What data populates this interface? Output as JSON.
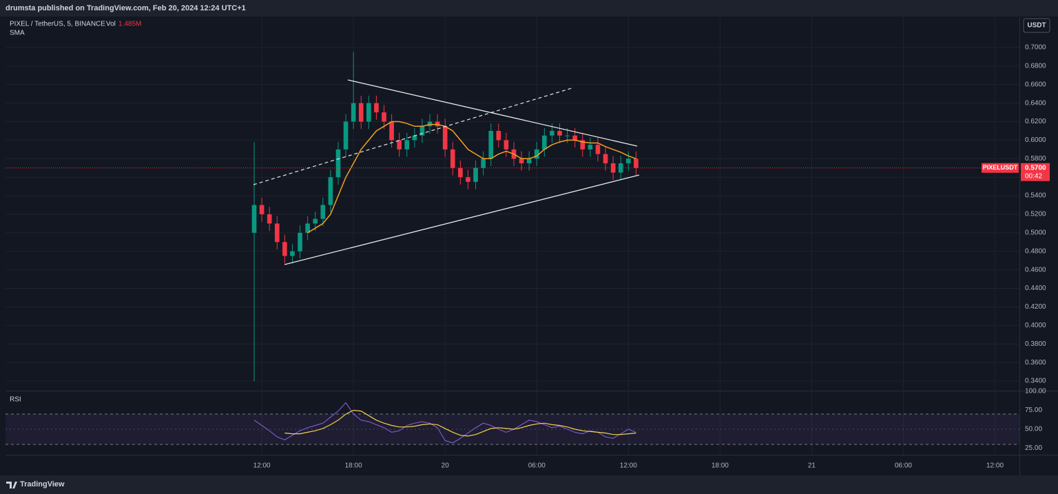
{
  "header": {
    "published": "drumsta published on TradingView.com, Feb 20, 2024 12:24 UTC+1",
    "brand": "TradingView"
  },
  "chart_data": [
    {
      "type": "candlestick",
      "title": "PIXEL / TetherUS, 5, BINANCE",
      "volume_label": "Vol",
      "volume": "1.485M",
      "indicator": "SMA",
      "currency": "USDT",
      "x": [
        11.5,
        12,
        12.5,
        13,
        13.5,
        14,
        14.5,
        15,
        15.5,
        16,
        16.5,
        17,
        17.5,
        18,
        18.5,
        19,
        19.5,
        20,
        20.5,
        21,
        21.5,
        22,
        22.5,
        23,
        23.5,
        24,
        24.5,
        25,
        25.5,
        26,
        26.5,
        27,
        27.5,
        28,
        28.5,
        29,
        29.5,
        30,
        30.5,
        31,
        31.5,
        32,
        32.5,
        33,
        33.5,
        34,
        34.5,
        35,
        35.5,
        36,
        36.5
      ],
      "open": [
        0.5,
        0.53,
        0.52,
        0.51,
        0.49,
        0.475,
        0.48,
        0.5,
        0.51,
        0.515,
        0.53,
        0.56,
        0.59,
        0.62,
        0.64,
        0.62,
        0.64,
        0.63,
        0.62,
        0.6,
        0.59,
        0.6,
        0.605,
        0.615,
        0.62,
        0.615,
        0.59,
        0.57,
        0.56,
        0.555,
        0.57,
        0.58,
        0.61,
        0.6,
        0.59,
        0.58,
        0.575,
        0.58,
        0.59,
        0.605,
        0.61,
        0.605,
        0.605,
        0.6,
        0.59,
        0.595,
        0.585,
        0.575,
        0.565,
        0.575,
        0.58
      ],
      "high": [
        0.598,
        0.538,
        0.528,
        0.518,
        0.498,
        0.488,
        0.508,
        0.518,
        0.523,
        0.538,
        0.568,
        0.598,
        0.628,
        0.695,
        0.648,
        0.648,
        0.648,
        0.638,
        0.628,
        0.608,
        0.608,
        0.613,
        0.623,
        0.628,
        0.628,
        0.623,
        0.598,
        0.578,
        0.568,
        0.578,
        0.588,
        0.618,
        0.618,
        0.608,
        0.598,
        0.588,
        0.588,
        0.598,
        0.613,
        0.618,
        0.618,
        0.613,
        0.613,
        0.608,
        0.603,
        0.603,
        0.593,
        0.583,
        0.583,
        0.588,
        0.588
      ],
      "low": [
        0.34,
        0.512,
        0.502,
        0.482,
        0.467,
        0.467,
        0.472,
        0.492,
        0.502,
        0.507,
        0.522,
        0.552,
        0.582,
        0.612,
        0.612,
        0.612,
        0.622,
        0.612,
        0.592,
        0.582,
        0.582,
        0.592,
        0.597,
        0.607,
        0.607,
        0.582,
        0.562,
        0.552,
        0.547,
        0.547,
        0.562,
        0.572,
        0.592,
        0.582,
        0.572,
        0.567,
        0.567,
        0.572,
        0.582,
        0.597,
        0.597,
        0.597,
        0.592,
        0.582,
        0.582,
        0.577,
        0.567,
        0.557,
        0.557,
        0.567,
        0.562
      ],
      "close": [
        0.53,
        0.52,
        0.51,
        0.49,
        0.475,
        0.48,
        0.5,
        0.51,
        0.515,
        0.53,
        0.56,
        0.59,
        0.62,
        0.64,
        0.62,
        0.64,
        0.63,
        0.62,
        0.6,
        0.59,
        0.6,
        0.605,
        0.615,
        0.62,
        0.615,
        0.59,
        0.57,
        0.56,
        0.555,
        0.57,
        0.58,
        0.61,
        0.6,
        0.59,
        0.58,
        0.575,
        0.58,
        0.59,
        0.605,
        0.61,
        0.605,
        0.605,
        0.6,
        0.59,
        0.595,
        0.585,
        0.575,
        0.565,
        0.575,
        0.58,
        0.57
      ],
      "up_color": "#089981",
      "down_color": "#f23645",
      "series": [
        {
          "name": "SMA",
          "color": "#f7a21b",
          "values": [
            null,
            null,
            null,
            null,
            null,
            null,
            null,
            0.5,
            0.505,
            0.51,
            0.52,
            0.54,
            0.56,
            0.575,
            0.59,
            0.6,
            0.61,
            0.615,
            0.62,
            0.62,
            0.618,
            0.615,
            0.615,
            0.617,
            0.617,
            0.615,
            0.61,
            0.6,
            0.59,
            0.585,
            0.58,
            0.58,
            0.585,
            0.588,
            0.585,
            0.58,
            0.58,
            0.583,
            0.59,
            0.595,
            0.598,
            0.6,
            0.6,
            0.598,
            0.597,
            0.597,
            0.593,
            0.59,
            0.587,
            0.583,
            0.58
          ]
        }
      ],
      "last": {
        "symbol": "PIXELUSDT",
        "value": 0.57,
        "label": "0.5700",
        "countdown": "00:42"
      },
      "xlim": [
        -4.78,
        61.6
      ],
      "xticks": [
        {
          "value": 12,
          "label": "12:00"
        },
        {
          "value": 18,
          "label": "18:00"
        },
        {
          "value": 24,
          "label": "20"
        },
        {
          "value": 30,
          "label": "06:00"
        },
        {
          "value": 36,
          "label": "12:00"
        },
        {
          "value": 42,
          "label": "18:00"
        },
        {
          "value": 48,
          "label": "21"
        },
        {
          "value": 54,
          "label": "06:00"
        },
        {
          "value": 60,
          "label": "12:00"
        }
      ],
      "ylim": [
        0.3296,
        0.7327
      ],
      "yticks": [
        {
          "value": 0.34,
          "label": "0.3400"
        },
        {
          "value": 0.36,
          "label": "0.3600"
        },
        {
          "value": 0.38,
          "label": "0.3800"
        },
        {
          "value": 0.4,
          "label": "0.4000"
        },
        {
          "value": 0.42,
          "label": "0.4200"
        },
        {
          "value": 0.44,
          "label": "0.4400"
        },
        {
          "value": 0.46,
          "label": "0.4600"
        },
        {
          "value": 0.48,
          "label": "0.4800"
        },
        {
          "value": 0.5,
          "label": "0.5000"
        },
        {
          "value": 0.52,
          "label": "0.5200"
        },
        {
          "value": 0.54,
          "label": "0.5400"
        },
        {
          "value": 0.56,
          "label": "0.5600"
        },
        {
          "value": 0.58,
          "label": "0.5800"
        },
        {
          "value": 0.6,
          "label": "0.6000"
        },
        {
          "value": 0.62,
          "label": "0.6200"
        },
        {
          "value": 0.64,
          "label": "0.6400"
        },
        {
          "value": 0.66,
          "label": "0.6600"
        },
        {
          "value": 0.68,
          "label": "0.6800"
        },
        {
          "value": 0.7,
          "label": "0.7000"
        }
      ],
      "grid": true
    },
    {
      "type": "line",
      "title": "RSI",
      "x": [
        11.5,
        12,
        12.5,
        13,
        13.5,
        14,
        14.5,
        15,
        15.5,
        16,
        16.5,
        17,
        17.5,
        18,
        18.5,
        19,
        19.5,
        20,
        20.5,
        21,
        21.5,
        22,
        22.5,
        23,
        23.5,
        24,
        24.5,
        25,
        25.5,
        26,
        26.5,
        27,
        27.5,
        28,
        28.5,
        29,
        29.5,
        30,
        30.5,
        31,
        31.5,
        32,
        32.5,
        33,
        33.5,
        34,
        34.5,
        35,
        35.5,
        36,
        36.5
      ],
      "series": [
        {
          "name": "RSI",
          "color": "#7e57c2",
          "values": [
            62,
            55,
            48,
            40,
            36,
            42,
            48,
            52,
            55,
            58,
            66,
            74,
            85,
            70,
            62,
            60,
            56,
            52,
            46,
            48,
            55,
            58,
            60,
            58,
            52,
            35,
            32,
            38,
            45,
            52,
            58,
            55,
            50,
            46,
            50,
            56,
            62,
            60,
            56,
            52,
            54,
            50,
            46,
            44,
            48,
            46,
            40,
            38,
            44,
            50,
            46
          ]
        },
        {
          "name": "RSI-based MA",
          "color": "#f5d24a",
          "values": [
            null,
            null,
            null,
            null,
            45,
            44,
            44,
            46,
            48,
            51,
            56,
            62,
            70,
            75,
            74,
            68,
            62,
            58,
            55,
            53,
            53,
            54,
            56,
            57,
            56,
            51,
            46,
            42,
            41,
            43,
            47,
            51,
            52,
            51,
            50,
            52,
            55,
            57,
            58,
            56,
            55,
            53,
            50,
            48,
            47,
            46,
            45,
            43,
            43,
            44,
            45
          ]
        }
      ],
      "bands": [
        30,
        70
      ],
      "xlim": [
        -4.78,
        61.6
      ],
      "ylim": [
        16.4,
        100
      ],
      "yticks": [
        {
          "value": 25,
          "label": "25.00"
        },
        {
          "value": 50,
          "label": "50.00"
        },
        {
          "value": 75,
          "label": "75.00"
        },
        {
          "value": 100,
          "label": "100.00"
        }
      ]
    }
  ]
}
